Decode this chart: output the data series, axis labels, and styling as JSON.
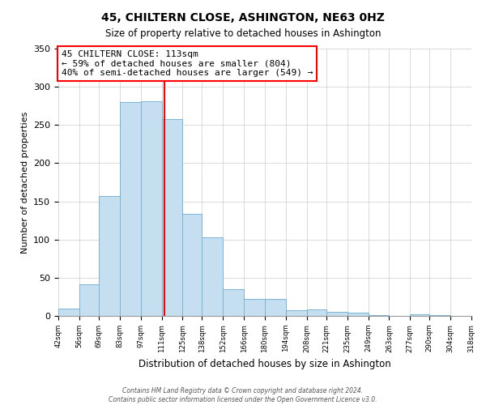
{
  "title": "45, CHILTERN CLOSE, ASHINGTON, NE63 0HZ",
  "subtitle": "Size of property relative to detached houses in Ashington",
  "xlabel": "Distribution of detached houses by size in Ashington",
  "ylabel": "Number of detached properties",
  "bins": [
    42,
    56,
    69,
    83,
    97,
    111,
    125,
    138,
    152,
    166,
    180,
    194,
    208,
    221,
    235,
    249,
    263,
    277,
    290,
    304,
    318
  ],
  "counts": [
    10,
    41,
    157,
    280,
    281,
    258,
    134,
    103,
    35,
    22,
    22,
    7,
    8,
    5,
    4,
    1,
    0,
    2,
    1,
    0,
    1
  ],
  "bar_color": "#c5dff0",
  "bar_edge_color": "#7ab4d4",
  "property_line_x": 113,
  "property_line_color": "red",
  "annotation_title": "45 CHILTERN CLOSE: 113sqm",
  "annotation_line1": "← 59% of detached houses are smaller (804)",
  "annotation_line2": "40% of semi-detached houses are larger (549) →",
  "annotation_box_color": "white",
  "annotation_box_edge": "red",
  "ylim": [
    0,
    350
  ],
  "xlim_left": 42,
  "xlim_right": 318,
  "tick_labels": [
    "42sqm",
    "56sqm",
    "69sqm",
    "83sqm",
    "97sqm",
    "111sqm",
    "125sqm",
    "138sqm",
    "152sqm",
    "166sqm",
    "180sqm",
    "194sqm",
    "208sqm",
    "221sqm",
    "235sqm",
    "249sqm",
    "263sqm",
    "277sqm",
    "290sqm",
    "304sqm",
    "318sqm"
  ],
  "footnote1": "Contains HM Land Registry data © Crown copyright and database right 2024.",
  "footnote2": "Contains public sector information licensed under the Open Government Licence v3.0."
}
